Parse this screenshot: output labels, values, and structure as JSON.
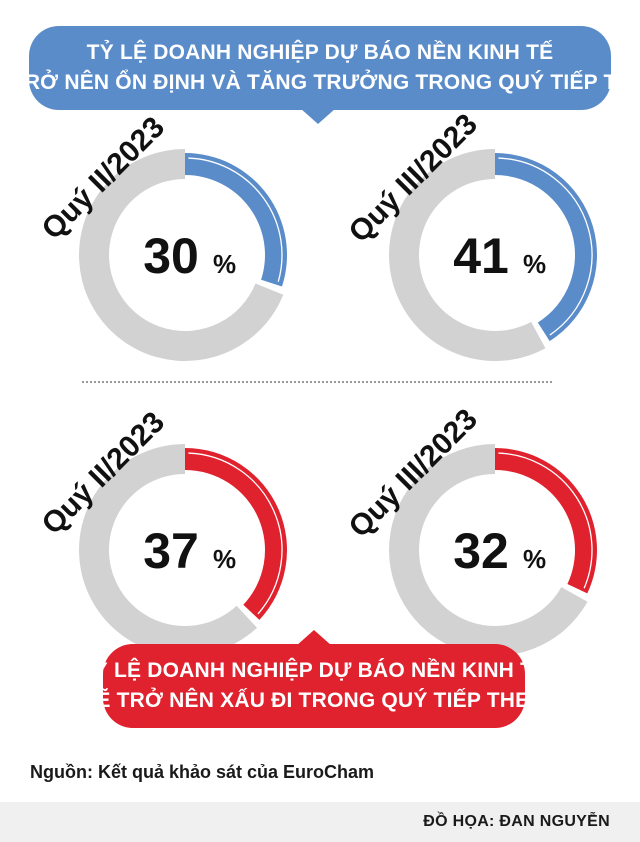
{
  "header": {
    "title_line1": "TỶ LỆ DOANH NGHIỆP DỰ BÁO NỀN KINH TẾ",
    "title_line2": "SẼ TRỞ NÊN ỔN ĐỊNH VÀ TĂNG TRƯỞNG TRONG QUÝ TIẾP THEO"
  },
  "lower_banner": {
    "title_line1": "TỶ LỆ DOANH NGHIỆP DỰ BÁO NỀN KINH TẾ",
    "title_line2": "SẼ TRỞ NÊN XẤU ĐI TRONG QUÝ TIẾP THEO"
  },
  "source": "Nguồn: Kết quả khảo sát của EuroCham",
  "credit": "ĐỒ HỌA: ĐAN NGUYỄN",
  "colors": {
    "stable_accent": "#5a8cc9",
    "worse_accent": "#e0212e",
    "remainder": "#d2d2d2"
  },
  "chart_data": [
    {
      "type": "pie",
      "group": "stable_growth",
      "label": "Quý II/2023",
      "value": 30,
      "unit": "%",
      "color": "#5a8cc9"
    },
    {
      "type": "pie",
      "group": "stable_growth",
      "label": "Quý III/2023",
      "value": 41,
      "unit": "%",
      "color": "#5a8cc9"
    },
    {
      "type": "pie",
      "group": "worse",
      "label": "Quý II/2023",
      "value": 37,
      "unit": "%",
      "color": "#e0212e"
    },
    {
      "type": "pie",
      "group": "worse",
      "label": "Quý III/2023",
      "value": 32,
      "unit": "%",
      "color": "#e0212e"
    }
  ]
}
